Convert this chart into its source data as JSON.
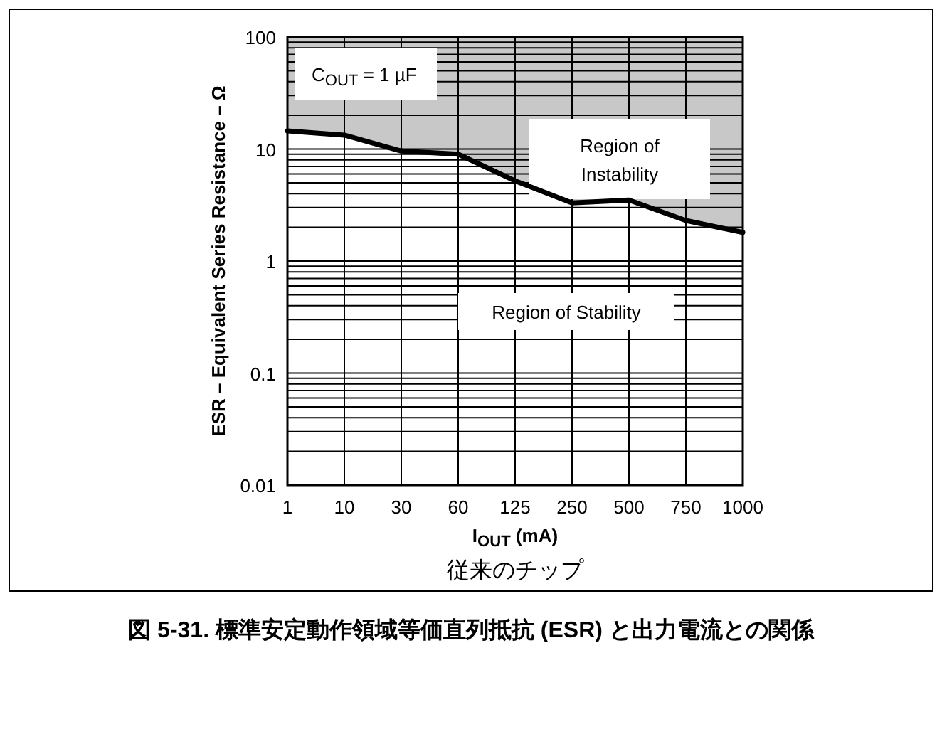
{
  "chart_data": {
    "type": "line",
    "title": "図 5-31. 標準安定動作領域等価直列抵抗 (ESR) と出力電流との関係",
    "xlabel": "I$_{OUT}$ (mA)",
    "ylabel": "ESR – Equivalent Series Resistance – Ω",
    "categories": [
      "1",
      "10",
      "30",
      "60",
      "125",
      "250",
      "500",
      "750",
      "1000"
    ],
    "series": [
      {
        "color": "#000000",
        "values": [
          14.5,
          13.3,
          9.6,
          9.0,
          5.2,
          3.3,
          3.5,
          2.3,
          1.8
        ],
        "lower": [
          14.5,
          13.3,
          9.6,
          9.0,
          5.2,
          3.3,
          3.5,
          2.3,
          1.8
        ],
        "upper": [
          100,
          100,
          100,
          100,
          100,
          100,
          100,
          100,
          100
        ]
      }
    ],
    "log": "y",
    "ylim": [
      0.01,
      100
    ],
    "yticks": [
      0.01,
      0.1,
      1,
      10,
      100
    ],
    "grid": true,
    "annotations": [
      "C$_{OUT}$ = 1 µF",
      "Region of\nInstability",
      "Region of Stability",
      "従来のチップ"
    ]
  }
}
